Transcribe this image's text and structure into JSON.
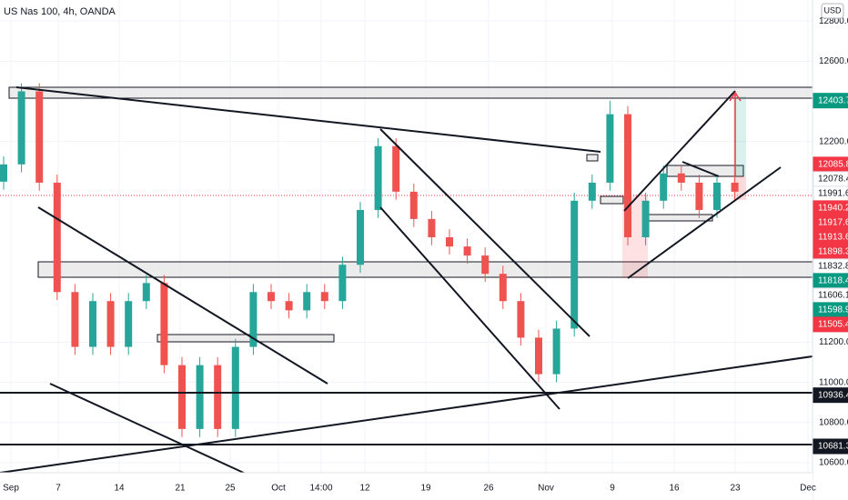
{
  "chart_data": {
    "type": "candlestick",
    "title": "US Nas 100, 4h, OANDA",
    "currency": "USD",
    "open": [
      12000,
      12086,
      12450,
      11995,
      11450,
      11177,
      11405,
      11177,
      11405,
      11495,
      11086,
      10768,
      11086,
      10768,
      11177,
      11450,
      11405,
      11359,
      11450,
      11405,
      11586,
      11859,
      12177,
      11950,
      11814,
      11723,
      11677,
      11632,
      11541,
      11405,
      11223,
      11041,
      11268,
      11905,
      11995,
      12336,
      11723,
      11905,
      12041,
      11995,
      11859,
      11995
    ],
    "high": [
      12126,
      12490,
      12490,
      12035,
      11490,
      11445,
      11445,
      11445,
      11535,
      11535,
      11126,
      11126,
      11126,
      11217,
      11490,
      11490,
      11445,
      11490,
      11490,
      11626,
      11899,
      12217,
      12217,
      11990,
      11854,
      11763,
      11717,
      11672,
      11581,
      11445,
      11263,
      11308,
      11945,
      12035,
      12403,
      12376,
      11945,
      12081,
      12081,
      12035,
      12035,
      12035
    ],
    "low": [
      11960,
      12046,
      11955,
      11410,
      11137,
      11137,
      11137,
      11137,
      11365,
      11046,
      10728,
      10728,
      10728,
      10728,
      11137,
      11365,
      11319,
      11319,
      11365,
      11365,
      11546,
      11819,
      11910,
      11774,
      11683,
      11637,
      11592,
      11501,
      11365,
      11183,
      11001,
      11001,
      11228,
      11865,
      11955,
      11683,
      11683,
      11865,
      11955,
      11819,
      11819,
      11910
    ],
    "close": [
      12086,
      12450,
      11995,
      11450,
      11177,
      11405,
      11177,
      11405,
      11495,
      11086,
      10768,
      11086,
      10768,
      11177,
      11450,
      11405,
      11359,
      11450,
      11405,
      11586,
      11859,
      12177,
      11950,
      11814,
      11723,
      11677,
      11632,
      11541,
      11405,
      11223,
      11041,
      11268,
      11905,
      11995,
      12336,
      11723,
      11905,
      12041,
      11995,
      11859,
      11995,
      11950
    ],
    "up_color": "#26a69a",
    "down_color": "#ef5350",
    "ylim": [
      10550,
      12905
    ],
    "yticks": [
      {
        "value": 12800,
        "label": "12800.0"
      },
      {
        "value": 12600,
        "label": "12600.0"
      },
      {
        "value": 12200,
        "label": "12200.0"
      },
      {
        "value": 11200,
        "label": "11200.0"
      },
      {
        "value": 11000,
        "label": "11000.0"
      },
      {
        "value": 10800,
        "label": "10800.0"
      },
      {
        "value": 10600,
        "label": "10600.0"
      }
    ],
    "grid": true,
    "x_labels": [
      "Sep",
      "7",
      "14",
      "21",
      "25",
      "Oct",
      "14:00",
      "12",
      "19",
      "26",
      "Nov",
      "9",
      "16",
      "23",
      "Dec"
    ],
    "price_labels": [
      {
        "value": 12403.7,
        "color": "#089981"
      },
      {
        "value": 12085.8,
        "color": "#f23645"
      },
      {
        "value": 12078.4,
        "color": "#ffffff"
      },
      {
        "value": 11991.6,
        "color": "#ffffff"
      },
      {
        "value": 11940.2,
        "color": "#f23645"
      },
      {
        "value": 11917.6,
        "color": "#f23645"
      },
      {
        "value": 11913.6,
        "color": "#f23645"
      },
      {
        "value": 11898.3,
        "color": "#f23645"
      },
      {
        "value": 11832.8,
        "color": "#ffffff"
      },
      {
        "value": 11818.4,
        "color": "#089981"
      },
      {
        "value": 11606.1,
        "color": "#ffffff"
      },
      {
        "value": 11598.9,
        "color": "#089981"
      },
      {
        "value": 11505.4,
        "color": "#f23645"
      },
      {
        "value": 10936.4,
        "color": "#131722"
      },
      {
        "value": 10681.3,
        "color": "#131722"
      }
    ]
  }
}
